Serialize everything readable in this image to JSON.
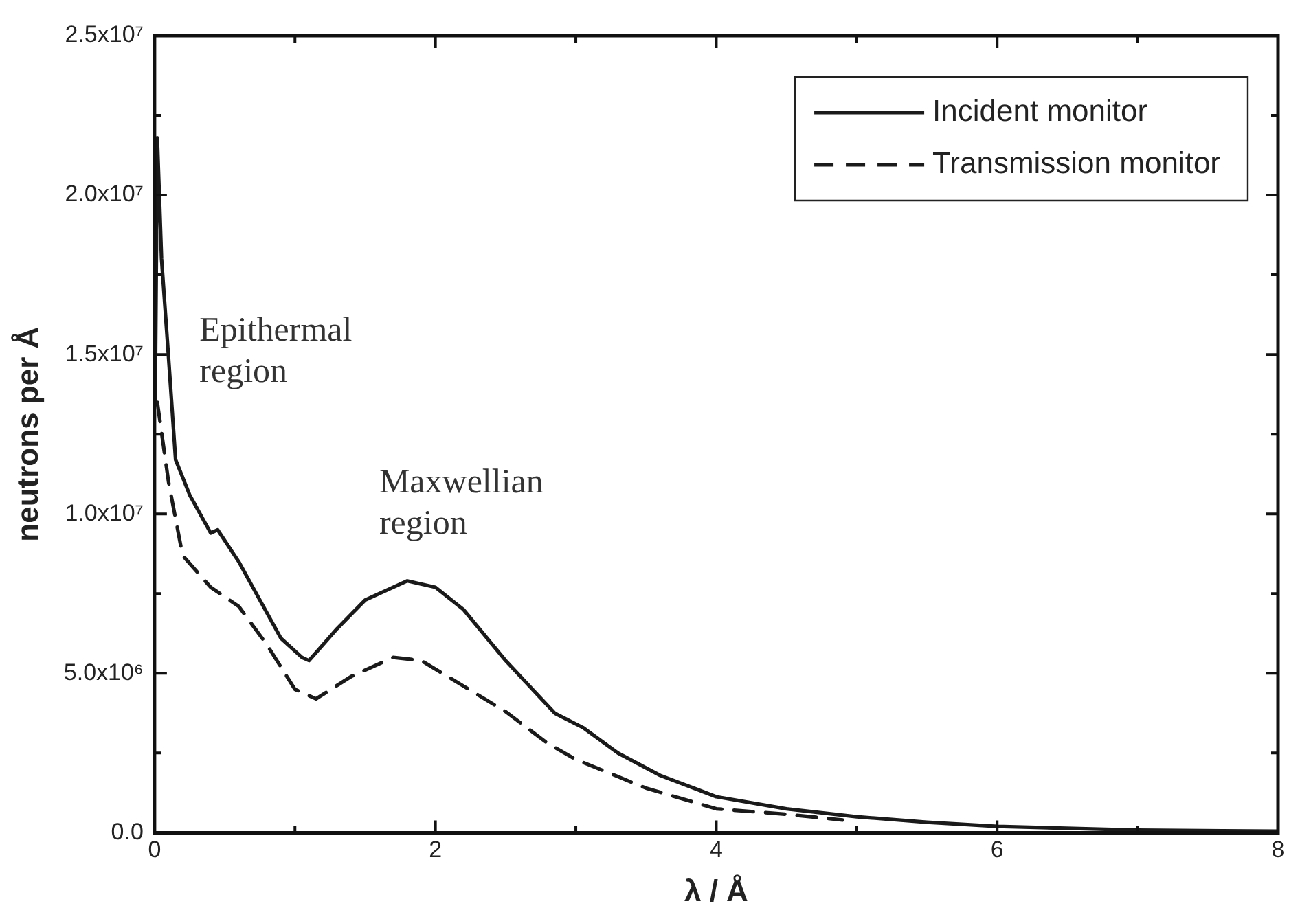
{
  "chart_data": {
    "type": "line",
    "xlabel": "λ / Å",
    "ylabel": "neutrons per Å",
    "xlim": [
      0,
      8
    ],
    "xticks": [
      0,
      2,
      4,
      6,
      8
    ],
    "ylim": [
      0,
      25000000
    ],
    "yticks": [
      {
        "value": 0,
        "label": "0.0"
      },
      {
        "value": 5000000,
        "label": "5.0x10⁶"
      },
      {
        "value": 10000000,
        "label": "1.0x10⁷"
      },
      {
        "value": 15000000,
        "label": "1.5x10⁷"
      },
      {
        "value": 20000000,
        "label": "2.0x10⁷"
      },
      {
        "value": 25000000,
        "label": "2.5x10⁷"
      }
    ],
    "grid": false,
    "legend": "top right",
    "marker": "none",
    "series": [
      {
        "name": "Incident monitor",
        "color": "#1a1a1a",
        "line_style": "solid",
        "x": [
          0.005,
          0.02,
          0.05,
          0.1,
          0.15,
          0.25,
          0.4,
          0.45,
          0.6,
          0.7,
          0.9,
          1.05,
          1.1,
          1.3,
          1.5,
          1.8,
          2.0,
          2.2,
          2.5,
          2.85,
          3.05,
          3.3,
          3.6,
          4.0,
          4.5,
          5.0,
          5.5,
          6.0,
          7.0,
          8.0
        ],
        "values": [
          13500000,
          21800000,
          18000000,
          14900000,
          11700000,
          10600000,
          9400000,
          9500000,
          8500000,
          7700000,
          6100000,
          5500000,
          5400000,
          6400000,
          7300000,
          7900000,
          7700000,
          7000000,
          5400000,
          3750000,
          3300000,
          2500000,
          1800000,
          1130000,
          750000,
          500000,
          330000,
          200000,
          80000,
          50000
        ]
      },
      {
        "name": "Transmission monitor",
        "color": "#1a1a1a",
        "line_style": "dashed",
        "x": [
          0.02,
          0.1,
          0.2,
          0.4,
          0.6,
          0.8,
          1.0,
          1.15,
          1.4,
          1.7,
          1.9,
          2.2,
          2.5,
          2.8,
          3.0,
          3.5,
          4.0,
          4.5,
          4.9
        ],
        "values": [
          13500000,
          11000000,
          8700000,
          7700000,
          7100000,
          5900000,
          4500000,
          4200000,
          4900000,
          5500000,
          5400000,
          4600000,
          3800000,
          2800000,
          2300000,
          1400000,
          750000,
          580000,
          400000
        ]
      }
    ],
    "annotations": [
      "Epithermal\nregion",
      "Maxwellian\nregion"
    ]
  }
}
